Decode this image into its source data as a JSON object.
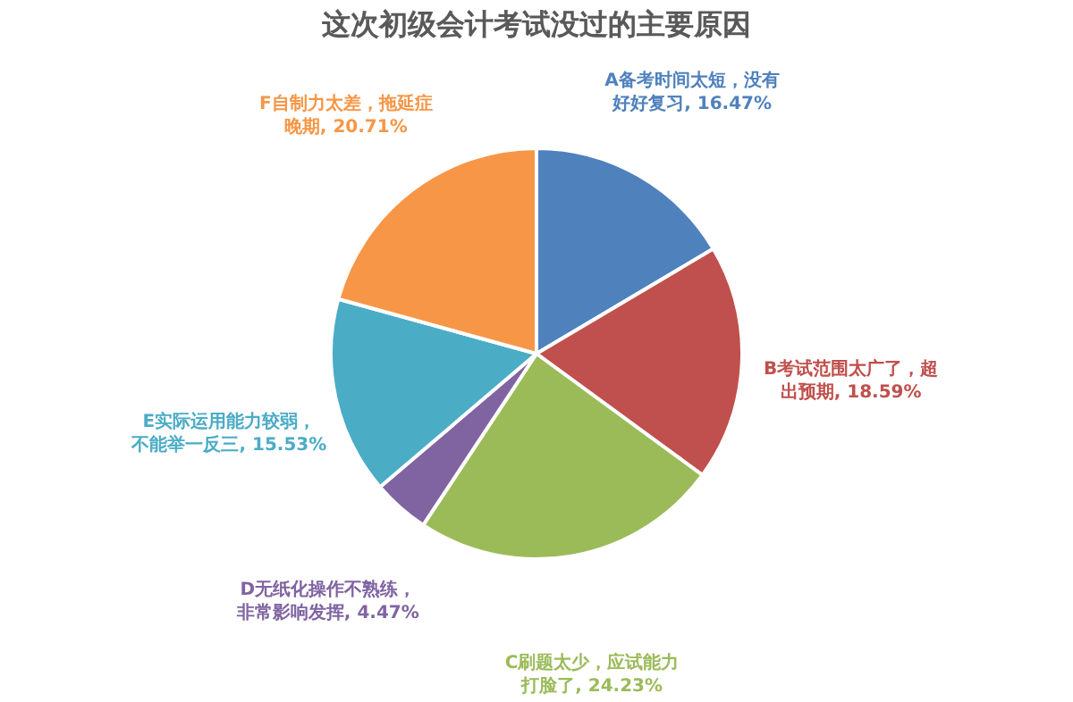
{
  "chart_data": {
    "type": "pie",
    "title": "这次初级会计考试没过的主要原因",
    "categories": [
      "A备考时间太短，没有好好复习",
      "B考试范围太广了，超出预期",
      "C刷题太少，应试能力打脸了",
      "D无纸化操作不熟练，非常影响发挥",
      "E实际运用能力较弱，不能举一反三",
      "F自制力太差，拖延症晚期"
    ],
    "values": [
      16.47,
      18.59,
      24.23,
      4.47,
      15.53,
      20.71
    ],
    "value_labels": [
      "16.47%",
      "18.59%",
      "24.23%",
      "4.47%",
      "15.53%",
      "20.71%"
    ],
    "colors": [
      "#4f81bd",
      "#c0504d",
      "#9bbb59",
      "#8064a2",
      "#4bacc6",
      "#f79646"
    ]
  }
}
